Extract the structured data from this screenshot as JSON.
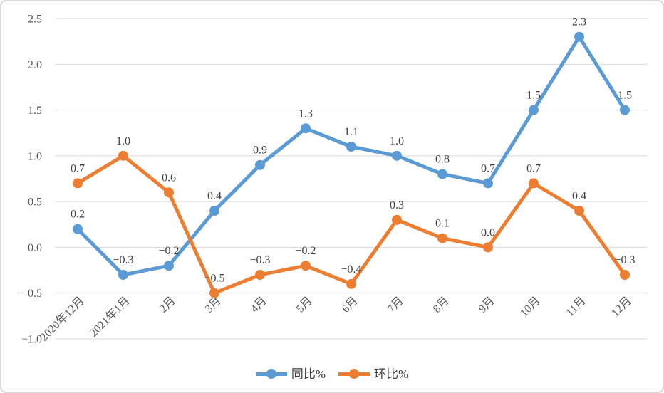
{
  "chart_data": {
    "type": "line",
    "categories": [
      "2020年12月",
      "2021年1月",
      "2月",
      "3月",
      "4月",
      "5月",
      "6月",
      "7月",
      "8月",
      "9月",
      "10月",
      "11月",
      "12月"
    ],
    "series": [
      {
        "name": "同比%",
        "color": "#5B9BD5",
        "values": [
          0.2,
          -0.3,
          -0.2,
          0.4,
          0.9,
          1.3,
          1.1,
          1.0,
          0.8,
          0.7,
          1.5,
          2.3,
          1.5
        ]
      },
      {
        "name": "环比%",
        "color": "#ED7D31",
        "values": [
          0.7,
          1.0,
          0.6,
          -0.5,
          -0.3,
          -0.2,
          -0.4,
          0.3,
          0.1,
          0.0,
          0.7,
          0.4,
          -0.3
        ]
      }
    ],
    "title": "",
    "xlabel": "",
    "ylabel": "",
    "yticks": [
      2.5,
      2.0,
      1.5,
      1.0,
      0.5,
      0.0,
      -0.5,
      -1.0
    ],
    "ylim": [
      -1.0,
      2.5
    ],
    "grid": true,
    "data_labels": true,
    "legend_position": "bottom",
    "colors": {
      "gridline": "#d9d9d9",
      "axis_text": "#595959",
      "data_label_text": "#404040",
      "background": "#ffffff",
      "border": "#d9d9d9"
    }
  }
}
